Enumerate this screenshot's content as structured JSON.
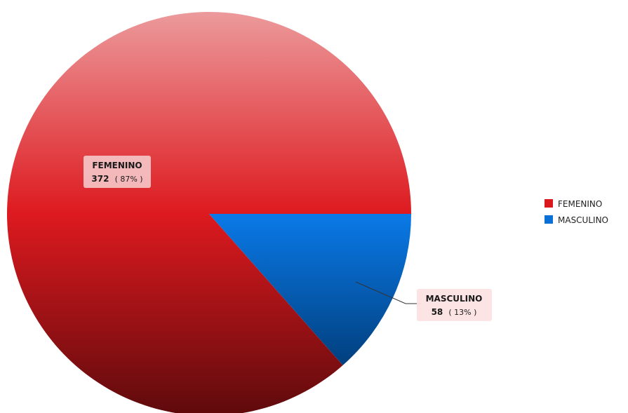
{
  "chart_data": {
    "type": "pie",
    "slices": [
      {
        "label": "FEMENINO",
        "value": 372,
        "percent_text": "( 87% )",
        "color": "#d9191e"
      },
      {
        "label": "MASCULINO",
        "value": 58,
        "percent_text": "( 13% )",
        "color": "#0a6fd6"
      }
    ],
    "legend": {
      "position": "right",
      "items": [
        "FEMENINO",
        "MASCULINO"
      ]
    }
  }
}
